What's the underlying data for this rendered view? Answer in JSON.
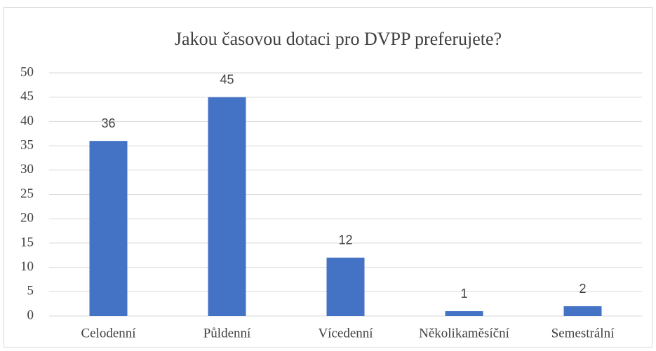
{
  "chart_data": {
    "type": "bar",
    "title": "Jakou časovou dotaci pro DVPP preferujete?",
    "categories": [
      "Celodenní",
      "Půldenní",
      "Vícedenní",
      "Několikaměsíční",
      "Semestrální"
    ],
    "values": [
      36,
      45,
      12,
      1,
      2
    ],
    "color": "#4472c4",
    "ylim": [
      0,
      50
    ],
    "yticks": [
      0,
      5,
      10,
      15,
      20,
      25,
      30,
      35,
      40,
      45,
      50
    ],
    "grid": true
  }
}
